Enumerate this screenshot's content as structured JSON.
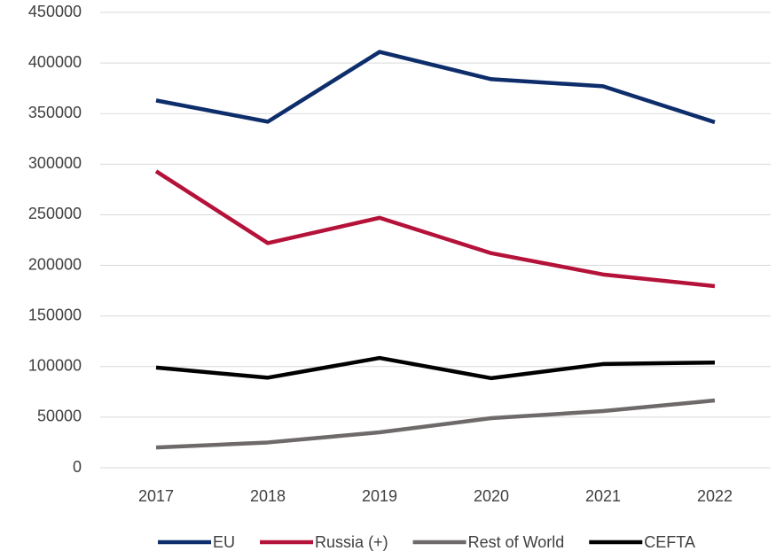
{
  "chart_data": {
    "type": "line",
    "categories": [
      "2017",
      "2018",
      "2019",
      "2020",
      "2021",
      "2022"
    ],
    "series": [
      {
        "name": "EU",
        "color": "#0d2d6b",
        "values": [
          363000,
          342000,
          411000,
          384000,
          377000,
          341500
        ]
      },
      {
        "name": "Russia (+)",
        "color": "#b5123a",
        "values": [
          293000,
          222000,
          247000,
          212000,
          191000,
          179500
        ]
      },
      {
        "name": "Rest of World",
        "color": "#6e6a6a",
        "values": [
          20000,
          25000,
          35000,
          49000,
          56000,
          66500
        ]
      },
      {
        "name": "CEFTA",
        "color": "#000000",
        "values": [
          99000,
          89000,
          108500,
          88500,
          102500,
          104000
        ]
      }
    ],
    "ylim": [
      0,
      450000
    ],
    "yticks": [
      0,
      50000,
      100000,
      150000,
      200000,
      250000,
      300000,
      350000,
      400000,
      450000
    ],
    "grid": true,
    "legend": "bottom"
  }
}
